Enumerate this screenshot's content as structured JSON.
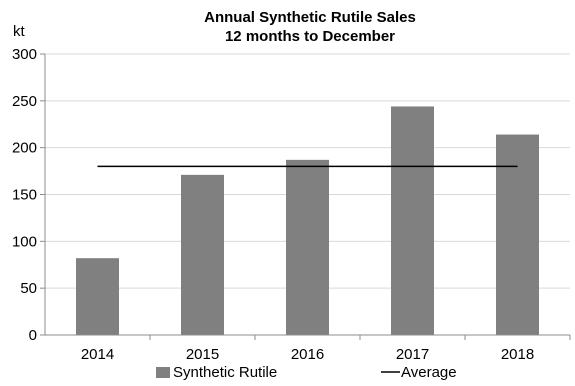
{
  "chart_data": {
    "type": "bar",
    "title": "Annual Synthetic Rutile Sales",
    "subtitle": "12 months to December",
    "ylabel": "kt",
    "xlabel": "",
    "categories": [
      "2014",
      "2015",
      "2016",
      "2017",
      "2018"
    ],
    "series": [
      {
        "name": "Synthetic Rutile",
        "type": "bar",
        "values": [
          82,
          171,
          187,
          244,
          214
        ],
        "color": "#808080"
      },
      {
        "name": "Average",
        "type": "line",
        "values": [
          180,
          180,
          180,
          180,
          180
        ],
        "color": "#000000"
      }
    ],
    "ylim": [
      0,
      300
    ],
    "yticks": [
      "0",
      "50",
      "100",
      "150",
      "200",
      "250",
      "300"
    ],
    "grid": true,
    "legend": "bottom"
  }
}
